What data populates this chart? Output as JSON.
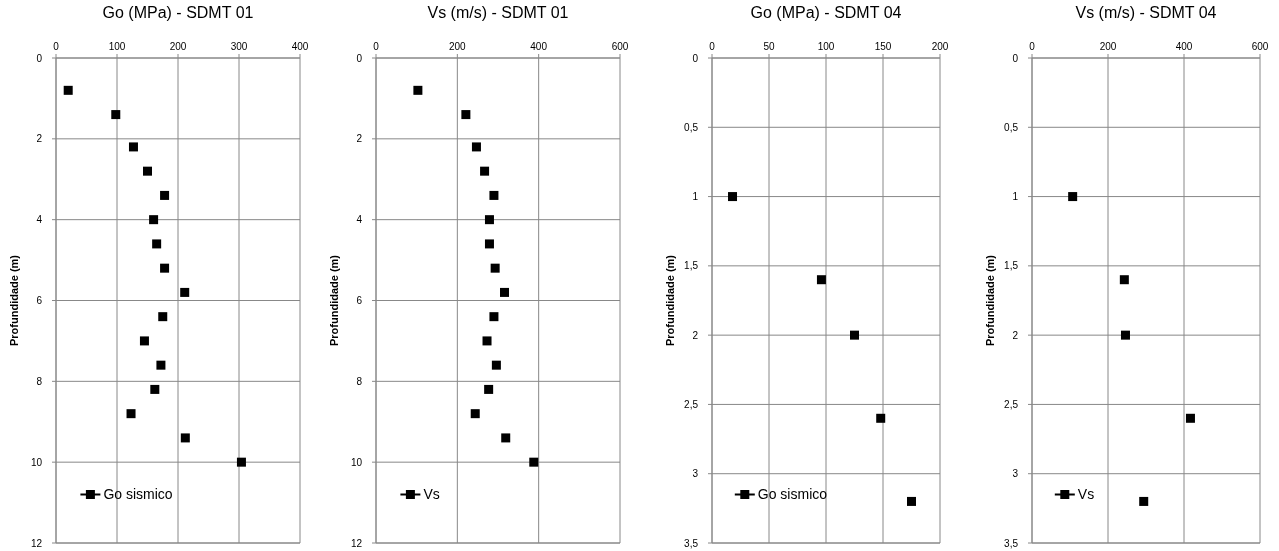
{
  "chart_data": [
    {
      "type": "scatter",
      "title": "Go (MPa) - SDMT 01",
      "ylabel": "Profundidade (m)",
      "xlim": [
        0,
        400
      ],
      "xticks": [
        0,
        100,
        200,
        300,
        400
      ],
      "ylim": [
        12,
        0
      ],
      "yticks": [
        0,
        2,
        4,
        6,
        8,
        10,
        12
      ],
      "grid": true,
      "legend": "bottom left",
      "marker": "square",
      "series": [
        {
          "name": "Go sismico",
          "color": "#000000",
          "x": [
            20,
            98,
            127,
            150,
            178,
            160,
            165,
            178,
            211,
            175,
            145,
            172,
            162,
            123,
            212,
            304
          ],
          "values": [
            0.8,
            1.4,
            2.2,
            2.8,
            3.4,
            4.0,
            4.6,
            5.2,
            5.8,
            6.4,
            7.0,
            7.6,
            8.2,
            8.8,
            9.4,
            10.0
          ]
        }
      ]
    },
    {
      "type": "scatter",
      "title": "Vs (m/s) - SDMT 01",
      "ylabel": "Profundidade (m)",
      "xlim": [
        0,
        600
      ],
      "xticks": [
        0,
        200,
        400,
        600
      ],
      "ylim": [
        12,
        0
      ],
      "yticks": [
        0,
        2,
        4,
        6,
        8,
        10,
        12
      ],
      "grid": true,
      "legend": "bottom left",
      "marker": "square",
      "series": [
        {
          "name": "Vs",
          "color": "#000000",
          "x": [
            103,
            221,
            247,
            267,
            290,
            279,
            279,
            293,
            316,
            290,
            273,
            296,
            277,
            244,
            319,
            388
          ],
          "values": [
            0.8,
            1.4,
            2.2,
            2.8,
            3.4,
            4.0,
            4.6,
            5.2,
            5.8,
            6.4,
            7.0,
            7.6,
            8.2,
            8.8,
            9.4,
            10.0
          ]
        }
      ]
    },
    {
      "type": "scatter",
      "title": "Go (MPa) - SDMT 04",
      "ylabel": "Profundidade (m)",
      "xlim": [
        0,
        200
      ],
      "xticks": [
        0,
        50,
        100,
        150,
        200
      ],
      "ylim": [
        3.5,
        0
      ],
      "yticks": [
        0,
        {
          "value": 0.5,
          "label": "0,5"
        },
        1,
        {
          "value": 1.5,
          "label": "1,5"
        },
        2,
        {
          "value": 2.5,
          "label": "2,5"
        },
        3,
        {
          "value": 3.5,
          "label": "3,5"
        }
      ],
      "grid": true,
      "legend": "bottom left",
      "marker": "square",
      "series": [
        {
          "name": "Go sismico",
          "color": "#000000",
          "x": [
            18,
            96,
            125,
            148,
            175
          ],
          "values": [
            1.0,
            1.6,
            2.0,
            2.6,
            3.2
          ]
        }
      ]
    },
    {
      "type": "scatter",
      "title": "Vs (m/s) - SDMT 04",
      "ylabel": "Profundidade (m)",
      "xlim": [
        0,
        600
      ],
      "xticks": [
        0,
        200,
        400,
        600
      ],
      "ylim": [
        3.5,
        0
      ],
      "yticks": [
        0,
        {
          "value": 0.5,
          "label": "0,5"
        },
        1,
        {
          "value": 1.5,
          "label": "1,5"
        },
        2,
        {
          "value": 2.5,
          "label": "2,5"
        },
        3,
        {
          "value": 3.5,
          "label": "3,5"
        }
      ],
      "grid": true,
      "legend": "bottom left",
      "marker": "square",
      "series": [
        {
          "name": "Vs",
          "color": "#000000",
          "x": [
            107,
            243,
            246,
            417,
            294
          ],
          "values": [
            1.0,
            1.6,
            2.0,
            2.6,
            3.2
          ]
        }
      ]
    }
  ]
}
